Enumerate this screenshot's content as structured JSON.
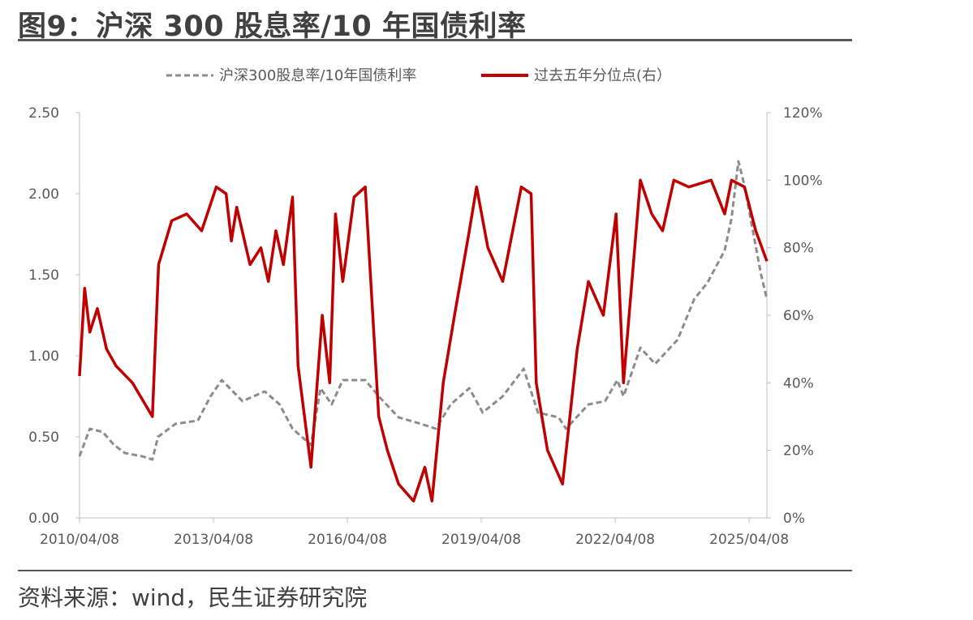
{
  "header": {
    "title": "图9：沪深 300 股息率/10 年国债利率"
  },
  "footer": {
    "source": "资料来源：wind，民生证券研究院"
  },
  "chart_data": {
    "type": "line",
    "title": "图9：沪深 300 股息率/10 年国债利率",
    "x_ticks": [
      "2010/04/08",
      "2013/04/08",
      "2016/04/08",
      "2019/04/08",
      "2022/04/08",
      "2025/04/08"
    ],
    "x_range": [
      "2010/04/08",
      "2025/08/31"
    ],
    "y_left": {
      "range": [
        0,
        2.5
      ],
      "ticks": [
        "0.00",
        "0.50",
        "1.00",
        "1.50",
        "2.00",
        "2.50"
      ]
    },
    "y_right": {
      "range": [
        0,
        120
      ],
      "ticks": [
        "0%",
        "20%",
        "40%",
        "60%",
        "80%",
        "100%",
        "120%"
      ]
    },
    "grid": false,
    "legend_position": "top",
    "series": [
      {
        "name": "沪深300股息率/10年国债利率",
        "axis": "left",
        "style": "dashed",
        "color": "#8c8c8c",
        "points": [
          [
            "2010/04/08",
            0.38
          ],
          [
            "2010/07/01",
            0.55
          ],
          [
            "2010/10/15",
            0.53
          ],
          [
            "2011/01/15",
            0.45
          ],
          [
            "2011/04/15",
            0.4
          ],
          [
            "2011/09/01",
            0.38
          ],
          [
            "2011/11/25",
            0.36
          ],
          [
            "2012/01/10",
            0.5
          ],
          [
            "2012/06/01",
            0.58
          ],
          [
            "2012/12/01",
            0.6
          ],
          [
            "2013/03/15",
            0.75
          ],
          [
            "2013/06/15",
            0.85
          ],
          [
            "2013/12/01",
            0.72
          ],
          [
            "2014/06/01",
            0.78
          ],
          [
            "2014/10/01",
            0.7
          ],
          [
            "2015/01/15",
            0.55
          ],
          [
            "2015/06/15",
            0.45
          ],
          [
            "2015/09/01",
            0.8
          ],
          [
            "2015/12/01",
            0.7
          ],
          [
            "2016/03/01",
            0.85
          ],
          [
            "2016/09/01",
            0.85
          ],
          [
            "2016/12/20",
            0.75
          ],
          [
            "2017/06/01",
            0.62
          ],
          [
            "2017/12/01",
            0.58
          ],
          [
            "2018/04/01",
            0.55
          ],
          [
            "2018/08/01",
            0.7
          ],
          [
            "2018/12/31",
            0.8
          ],
          [
            "2019/04/20",
            0.65
          ],
          [
            "2019/10/01",
            0.75
          ],
          [
            "2020/03/20",
            0.92
          ],
          [
            "2020/07/15",
            0.65
          ],
          [
            "2020/12/31",
            0.62
          ],
          [
            "2021/03/01",
            0.55
          ],
          [
            "2021/09/01",
            0.7
          ],
          [
            "2022/01/15",
            0.72
          ],
          [
            "2022/04/25",
            0.85
          ],
          [
            "2022/06/15",
            0.75
          ],
          [
            "2022/10/31",
            1.05
          ],
          [
            "2023/03/01",
            0.95
          ],
          [
            "2023/09/01",
            1.1
          ],
          [
            "2024/01/15",
            1.35
          ],
          [
            "2024/05/01",
            1.45
          ],
          [
            "2024/09/20",
            1.65
          ],
          [
            "2024/11/15",
            1.85
          ],
          [
            "2025/01/10",
            2.2
          ],
          [
            "2025/03/01",
            2.05
          ],
          [
            "2025/05/01",
            1.8
          ],
          [
            "2025/07/15",
            1.5
          ],
          [
            "2025/08/31",
            1.35
          ]
        ]
      },
      {
        "name": "过去五年分位点(右）",
        "axis": "right",
        "style": "solid",
        "color": "#c00000",
        "points": [
          [
            "2010/04/08",
            42
          ],
          [
            "2010/05/20",
            68
          ],
          [
            "2010/07/01",
            55
          ],
          [
            "2010/09/01",
            62
          ],
          [
            "2010/11/15",
            50
          ],
          [
            "2011/02/01",
            45
          ],
          [
            "2011/06/15",
            40
          ],
          [
            "2011/11/25",
            30
          ],
          [
            "2012/01/15",
            75
          ],
          [
            "2012/05/01",
            88
          ],
          [
            "2012/09/01",
            90
          ],
          [
            "2013/01/01",
            85
          ],
          [
            "2013/05/01",
            98
          ],
          [
            "2013/07/20",
            96
          ],
          [
            "2013/09/01",
            82
          ],
          [
            "2013/10/15",
            92
          ],
          [
            "2014/02/01",
            75
          ],
          [
            "2014/05/01",
            80
          ],
          [
            "2014/07/01",
            70
          ],
          [
            "2014/09/01",
            85
          ],
          [
            "2014/11/01",
            75
          ],
          [
            "2015/01/15",
            95
          ],
          [
            "2015/03/01",
            45
          ],
          [
            "2015/06/15",
            15
          ],
          [
            "2015/09/15",
            60
          ],
          [
            "2015/11/15",
            40
          ],
          [
            "2016/01/01",
            90
          ],
          [
            "2016/03/01",
            70
          ],
          [
            "2016/06/01",
            95
          ],
          [
            "2016/09/01",
            98
          ],
          [
            "2016/12/20",
            30
          ],
          [
            "2017/03/01",
            20
          ],
          [
            "2017/06/01",
            10
          ],
          [
            "2017/10/01",
            5
          ],
          [
            "2018/01/01",
            15
          ],
          [
            "2018/03/01",
            5
          ],
          [
            "2018/06/01",
            40
          ],
          [
            "2018/09/01",
            60
          ],
          [
            "2018/12/31",
            85
          ],
          [
            "2019/03/01",
            98
          ],
          [
            "2019/06/01",
            80
          ],
          [
            "2019/10/01",
            70
          ],
          [
            "2020/03/01",
            98
          ],
          [
            "2020/05/20",
            96
          ],
          [
            "2020/07/01",
            40
          ],
          [
            "2020/10/01",
            20
          ],
          [
            "2021/02/01",
            10
          ],
          [
            "2021/06/01",
            50
          ],
          [
            "2021/09/01",
            70
          ],
          [
            "2022/01/01",
            60
          ],
          [
            "2022/04/15",
            90
          ],
          [
            "2022/06/15",
            40
          ],
          [
            "2022/10/31",
            100
          ],
          [
            "2023/02/01",
            90
          ],
          [
            "2023/05/01",
            85
          ],
          [
            "2023/08/01",
            100
          ],
          [
            "2023/12/01",
            98
          ],
          [
            "2024/06/01",
            100
          ],
          [
            "2024/09/20",
            90
          ],
          [
            "2024/11/15",
            100
          ],
          [
            "2025/03/01",
            98
          ],
          [
            "2025/06/01",
            85
          ],
          [
            "2025/08/31",
            76
          ]
        ]
      }
    ]
  }
}
